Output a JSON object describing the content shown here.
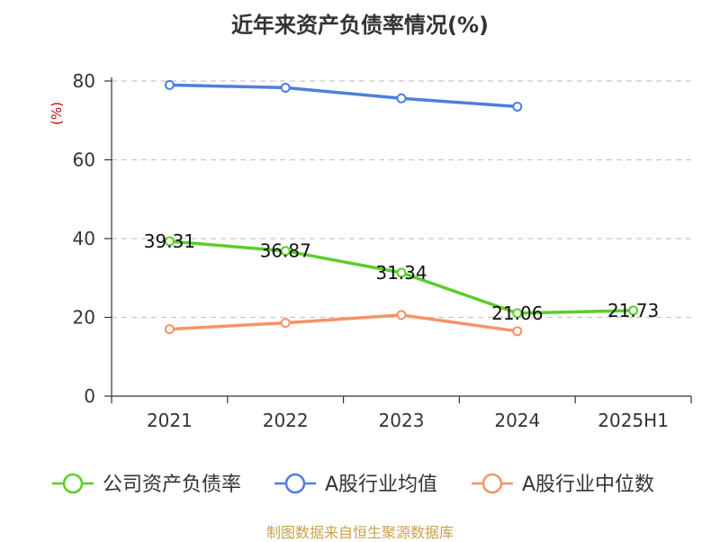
{
  "chart_data": {
    "type": "line",
    "title": "近年来资产负债率情况(%)",
    "ylabel": "(%)",
    "categories": [
      "2021",
      "2022",
      "2023",
      "2024",
      "2025H1"
    ],
    "ylim": [
      0,
      80
    ],
    "yticks": [
      0,
      20,
      40,
      60,
      80
    ],
    "grid": true,
    "legend_position": "bottom",
    "series": [
      {
        "name": "公司资产负债率",
        "color": "#5ccd2a",
        "values": [
          39.31,
          36.87,
          31.34,
          21.06,
          21.73
        ],
        "labels": [
          "39.31",
          "36.87",
          "31.34",
          "21.06",
          "21.73"
        ]
      },
      {
        "name": "A股行业均值",
        "color": "#4f7fdc",
        "values": [
          79.0,
          78.3,
          75.6,
          73.5,
          null
        ]
      },
      {
        "name": "A股行业中位数",
        "color": "#f59466",
        "values": [
          17.0,
          18.6,
          20.6,
          16.5,
          null
        ]
      }
    ]
  },
  "footer": {
    "source": "制图数据来自恒生聚源数据库"
  }
}
